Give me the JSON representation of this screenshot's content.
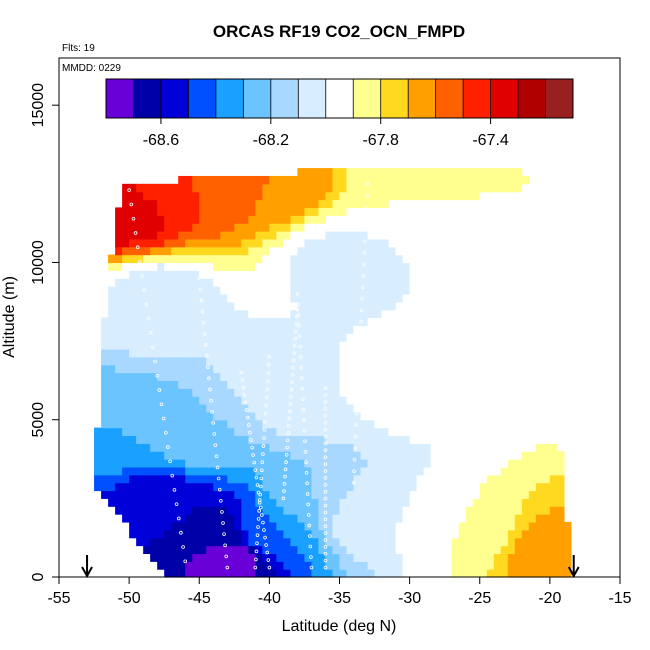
{
  "chart_data": {
    "type": "heatmap",
    "title": "ORCAS RF19 CO2_OCN_FMPD",
    "flights_label": "Flts: 19",
    "mmdd_label": "MMDD: 0229",
    "xlabel": "Latitude (deg N)",
    "ylabel": "Altitude (m)",
    "xlim": [
      -55,
      -15
    ],
    "ylim": [
      0,
      16500
    ],
    "x_ticks": [
      -55,
      -50,
      -45,
      -40,
      -35,
      -30,
      -25,
      -20,
      -15
    ],
    "x_tick_labels": [
      "-55",
      "-50",
      "-45",
      "-40",
      "-35",
      "-30",
      "-25",
      "-20",
      "-15"
    ],
    "y_ticks": [
      0,
      5000,
      10000,
      15000
    ],
    "y_tick_labels": [
      "0",
      "5000",
      "10000",
      "15000"
    ],
    "colorbar": {
      "vmin": -68.8,
      "vmax": -67.1,
      "ticks": [
        -68.6,
        -68.2,
        -67.8,
        -67.4
      ],
      "tick_labels": [
        "-68.6",
        "-68.2",
        "-67.8",
        "-67.4"
      ],
      "n_bins": 17,
      "colors": [
        "#6a00d8",
        "#0000a8",
        "#0000d8",
        "#0050ff",
        "#1aa0ff",
        "#6cc4ff",
        "#a8d8ff",
        "#d8eeff",
        "#ffffff",
        "#ffff90",
        "#ffd820",
        "#ffa000",
        "#ff6000",
        "#ff2000",
        "#e00000",
        "#b00000",
        "#982020"
      ]
    },
    "arrows_at_latitude": [
      -53,
      -18.3
    ],
    "profile_lat_bounds": [
      {
        "alt": 0,
        "west": -47.5,
        "east": -18.5
      },
      {
        "alt": 1500,
        "west": -50,
        "east": -18.7
      },
      {
        "alt": 3000,
        "west": -52.5,
        "east": -19
      },
      {
        "alt": 5000,
        "west": -52.2,
        "east": -19.5
      },
      {
        "alt": 8000,
        "west": -51.8,
        "east": -19.8
      },
      {
        "alt": 10000,
        "west": -51.3,
        "east": -20.5
      },
      {
        "alt": 12500,
        "west": -50.5,
        "east": -21.5
      },
      {
        "alt": 12900,
        "west": -37,
        "east": -21.8
      }
    ],
    "field_samples": [
      {
        "lat": -43,
        "alt": 600,
        "value": -68.75
      },
      {
        "lat": -44,
        "alt": 1500,
        "value": -68.65
      },
      {
        "lat": -48,
        "alt": 2500,
        "value": -68.55
      },
      {
        "lat": -40,
        "alt": 1500,
        "value": -68.4
      },
      {
        "lat": -37,
        "alt": 2500,
        "value": -68.2
      },
      {
        "lat": -33,
        "alt": 2000,
        "value": -68.0
      },
      {
        "lat": -26,
        "alt": 1500,
        "value": -67.9
      },
      {
        "lat": -20,
        "alt": 800,
        "value": -67.65
      },
      {
        "lat": -51,
        "alt": 4500,
        "value": -68.3
      },
      {
        "lat": -45,
        "alt": 4500,
        "value": -68.2
      },
      {
        "lat": -38,
        "alt": 6000,
        "value": -68.0
      },
      {
        "lat": -30,
        "alt": 6000,
        "value": -67.97
      },
      {
        "lat": -48,
        "alt": 9000,
        "value": -68.05
      },
      {
        "lat": -35,
        "alt": 10000,
        "value": -68.02
      },
      {
        "lat": -50,
        "alt": 11500,
        "value": -67.35
      },
      {
        "lat": -46,
        "alt": 12300,
        "value": -67.5
      },
      {
        "lat": -40,
        "alt": 12700,
        "value": -67.6
      },
      {
        "lat": -30,
        "alt": 12800,
        "value": -67.9
      }
    ]
  }
}
